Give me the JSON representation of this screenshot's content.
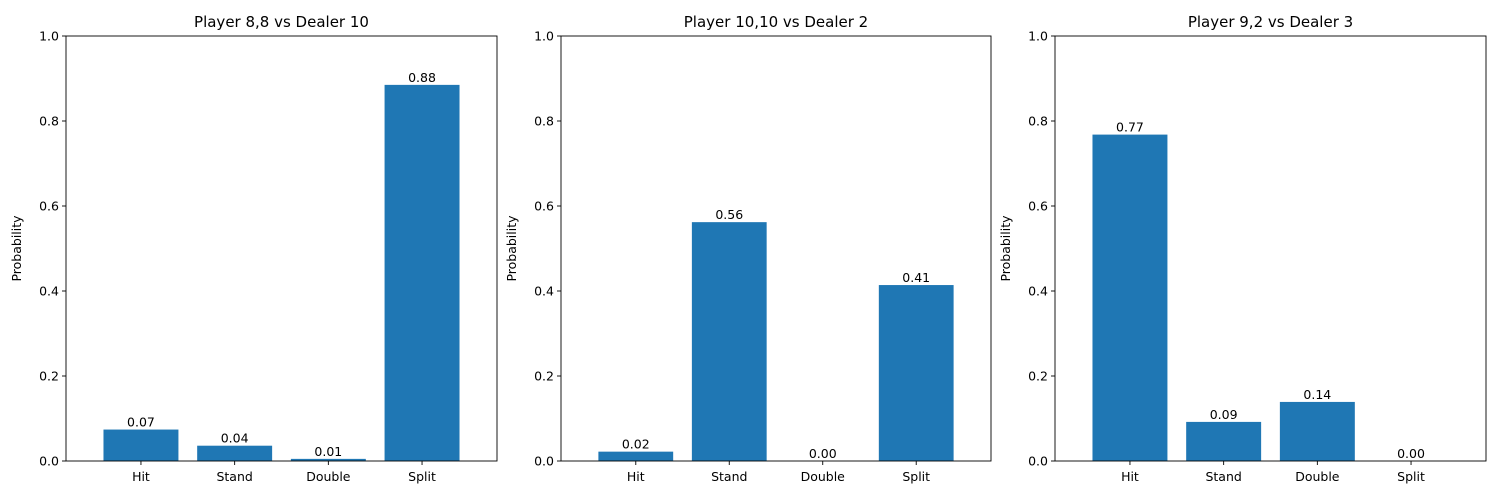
{
  "chart_data": [
    {
      "type": "bar",
      "title": "Player 8,8 vs Dealer 10",
      "xlabel": "",
      "ylabel": "Probability",
      "categories": [
        "Hit",
        "Stand",
        "Double",
        "Split"
      ],
      "values": [
        0.074,
        0.036,
        0.005,
        0.885
      ],
      "data_labels": [
        "0.07",
        "0.04",
        "0.01",
        "0.88"
      ],
      "ylim": [
        0,
        1.0
      ],
      "yticks": [
        "0.0",
        "0.2",
        "0.4",
        "0.6",
        "0.8",
        "1.0"
      ],
      "grid": false,
      "bar_color": "#1f77b4"
    },
    {
      "type": "bar",
      "title": "Player 10,10 vs Dealer 2",
      "xlabel": "",
      "ylabel": "Probability",
      "categories": [
        "Hit",
        "Stand",
        "Double",
        "Split"
      ],
      "values": [
        0.022,
        0.562,
        0.0,
        0.414
      ],
      "data_labels": [
        "0.02",
        "0.56",
        "0.00",
        "0.41"
      ],
      "ylim": [
        0,
        1.0
      ],
      "yticks": [
        "0.0",
        "0.2",
        "0.4",
        "0.6",
        "0.8",
        "1.0"
      ],
      "grid": false,
      "bar_color": "#1f77b4"
    },
    {
      "type": "bar",
      "title": "Player 9,2 vs Dealer 3",
      "xlabel": "",
      "ylabel": "Probability",
      "categories": [
        "Hit",
        "Stand",
        "Double",
        "Split"
      ],
      "values": [
        0.768,
        0.092,
        0.139,
        0.0
      ],
      "data_labels": [
        "0.77",
        "0.09",
        "0.14",
        "0.00"
      ],
      "ylim": [
        0,
        1.0
      ],
      "yticks": [
        "0.0",
        "0.2",
        "0.4",
        "0.6",
        "0.8",
        "1.0"
      ],
      "grid": false,
      "bar_color": "#1f77b4"
    }
  ]
}
